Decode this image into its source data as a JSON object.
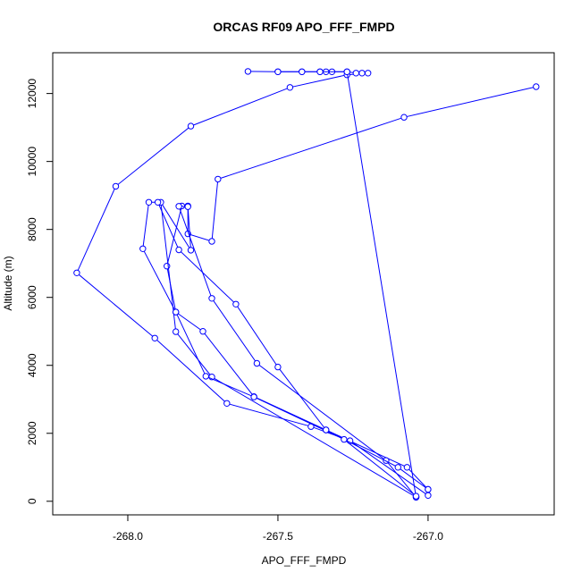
{
  "chart_data": {
    "type": "line",
    "title": "ORCAS RF09 APO_FFF_FMPD",
    "xlabel": "APO_FFF_FMPD",
    "ylabel": "Altitude (m)",
    "xlim": [
      -268.25,
      -266.58
    ],
    "ylim": [
      -400,
      13200
    ],
    "xticks": [
      -268.0,
      -267.5,
      -267.0
    ],
    "xtick_labels": [
      "-268.0",
      "-267.5",
      "-267.0"
    ],
    "yticks": [
      0,
      2000,
      4000,
      6000,
      8000,
      10000,
      12000
    ],
    "ytick_labels": [
      "0",
      "2000",
      "4000",
      "6000",
      "8000",
      "10000",
      "12000"
    ],
    "grid": false,
    "legend": "none",
    "marker": "open-circle",
    "line_color": "#0000ff",
    "series": [
      {
        "x": [
          -266.64,
          -267.08,
          -267.7,
          -267.72,
          -267.8,
          -267.8,
          -267.82,
          -267.87,
          -267.84,
          -267.75,
          -267.58,
          -267.34,
          -267.07,
          -267.0
        ],
        "y": [
          12200,
          11300,
          9480,
          7650,
          7870,
          8690,
          8690,
          6920,
          5570,
          5000,
          3080,
          2100,
          1000,
          350
        ]
      },
      {
        "x": [
          -267.0,
          -267.26,
          -267.39,
          -267.67,
          -267.91,
          -268.17,
          -268.04,
          -267.79,
          -267.46,
          -267.27,
          -267.2,
          -267.22,
          -267.24,
          -267.27,
          -267.32,
          -267.34,
          -267.36,
          -267.42,
          -267.5,
          -267.6
        ],
        "y": [
          170,
          1780,
          2200,
          2880,
          4800,
          6720,
          9270,
          11040,
          12180,
          12550,
          12600,
          12600,
          12600,
          12640,
          12640,
          12640,
          12640,
          12640,
          12640,
          12650
        ]
      },
      {
        "x": [
          -267.5,
          -267.42,
          -267.36,
          -267.27,
          -267.04,
          -267.72,
          -267.84,
          -267.89,
          -267.79,
          -267.8,
          -267.83,
          -267.72,
          -267.57,
          -267.14,
          -267.04
        ],
        "y": [
          12640,
          12640,
          12640,
          12640,
          120,
          3660,
          4990,
          8800,
          7390,
          8670,
          8680,
          5970,
          4060,
          1200,
          120
        ]
      },
      {
        "x": [
          -267.04,
          -267.28,
          -267.58,
          -267.74,
          -267.84,
          -267.95,
          -267.93,
          -267.9,
          -267.83,
          -267.64,
          -267.5,
          -267.34,
          -267.1,
          -267.0
        ],
        "y": [
          150,
          1820,
          3070,
          3680,
          5570,
          7430,
          8800,
          8800,
          7400,
          5800,
          3950,
          2100,
          1000,
          350
        ]
      }
    ]
  }
}
